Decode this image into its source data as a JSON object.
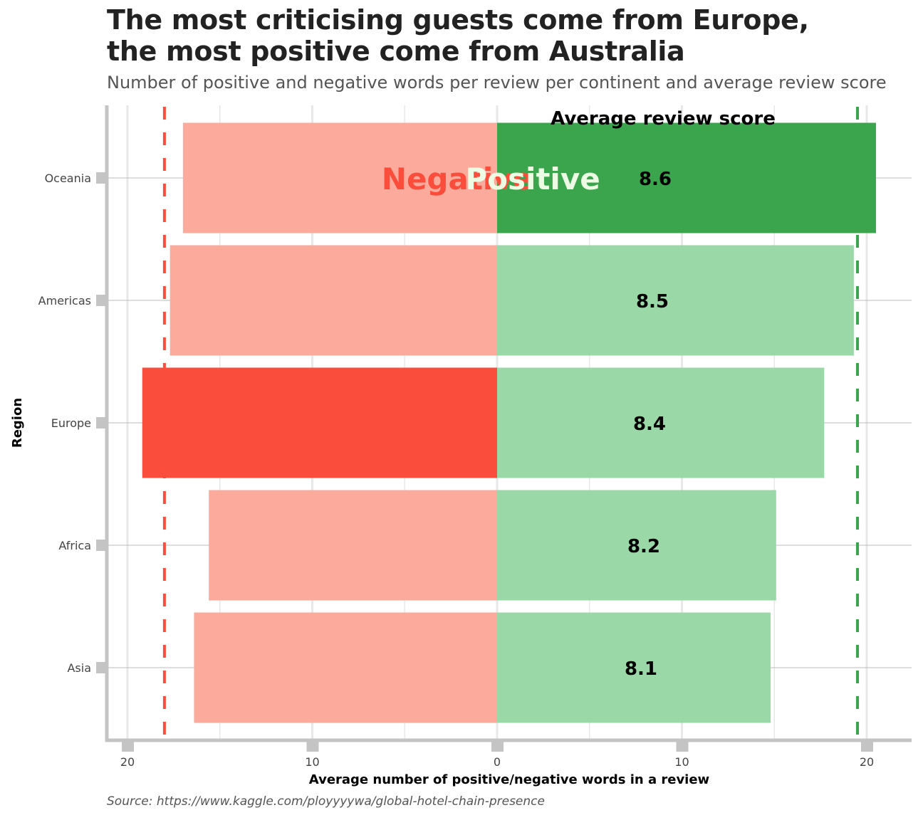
{
  "header": {
    "title_line1": "The most criticising guests come from Europe,",
    "title_line2": "the most positive come from Australia",
    "subtitle": "Number of positive and negative words per review per continent and average review score"
  },
  "source": "Source: https://www.kaggle.com/ployyyywa/global-hotel-chain-presence",
  "colors": {
    "negative_light": "#fcaa9b",
    "negative_highlight": "#fb4d3b",
    "positive_light": "#9bd8a8",
    "positive_highlight": "#3ba54e",
    "negative_label": "#fb4d3b",
    "positive_label": "#eefbe4",
    "axis": "#c4c4c4",
    "grid_major": "#bdbdbd",
    "grid_minor": "#e8e8e8"
  },
  "chart_data": {
    "type": "bar",
    "orientation": "horizontal-diverging",
    "title": "The most criticising guests come from Europe, the most positive come from Australia",
    "subtitle": "Number of positive and negative words per review per continent and average review score",
    "xlabel": "Average number of positive/negative words in a review",
    "ylabel": "Region",
    "categories": [
      "Oceania",
      "Americas",
      "Europe",
      "Africa",
      "Asia"
    ],
    "series": [
      {
        "name": "Negative",
        "values": [
          17.0,
          17.7,
          19.2,
          15.6,
          16.4
        ],
        "highlight_index": 2
      },
      {
        "name": "Positive",
        "values": [
          20.5,
          19.3,
          17.7,
          15.1,
          14.8
        ],
        "highlight_index": 0
      }
    ],
    "average_review_score": [
      8.6,
      8.5,
      8.4,
      8.2,
      8.1
    ],
    "score_header": "Average review score",
    "reference_lines": [
      {
        "series": "Negative",
        "value": 18.0,
        "style": "dashed"
      },
      {
        "series": "Positive",
        "value": 19.5,
        "style": "dashed"
      }
    ],
    "xlim": [
      -20.5,
      22.5
    ],
    "xticks": [
      -20,
      -10,
      0,
      10,
      20
    ],
    "xtick_labels": [
      "20",
      "10",
      "0",
      "10",
      "20"
    ],
    "annotations": [
      {
        "text": "Negative",
        "category": "Oceania"
      },
      {
        "text": "Positive",
        "category": "Oceania"
      }
    ],
    "grid": true,
    "legend": "none"
  }
}
